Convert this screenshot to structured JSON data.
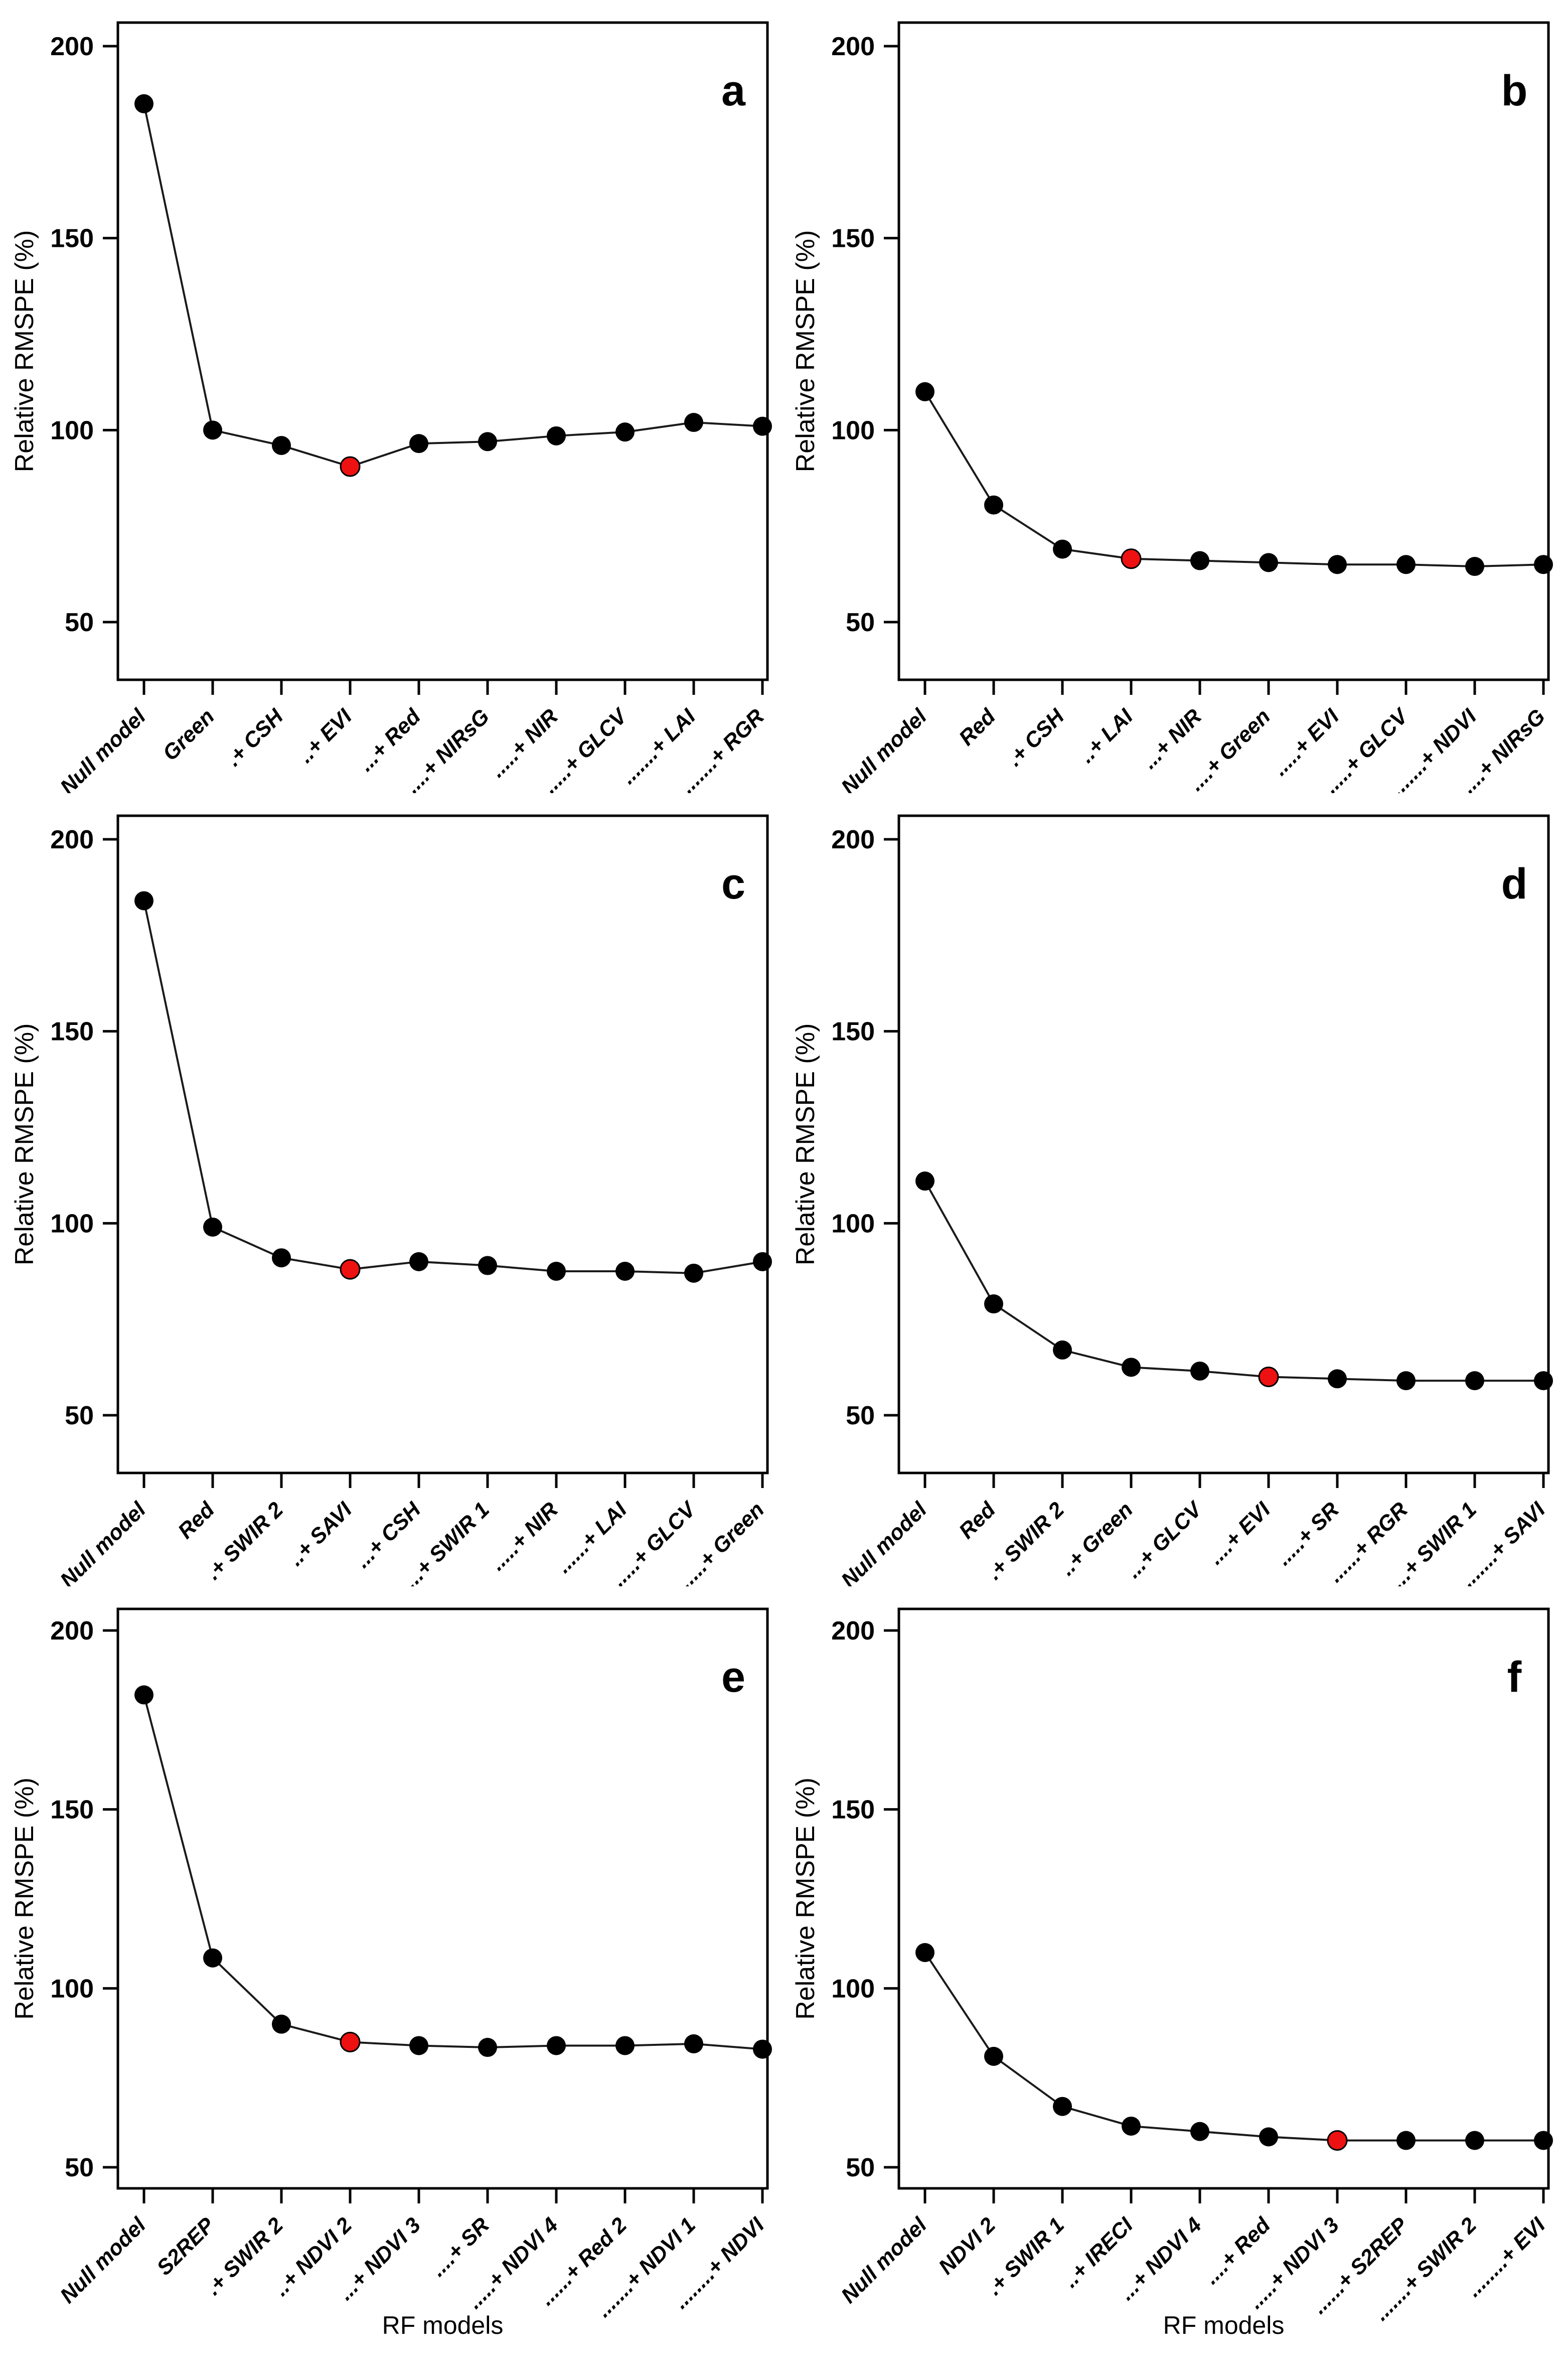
{
  "figure": {
    "ylabel": "Relative RMSPE (%)",
    "xlabel": "RF models",
    "colors": {
      "background": "#ffffff",
      "axis": "#000000",
      "line": "#1a1a1a",
      "point": "#000000",
      "highlight_point": "#ee1111",
      "text": "#000000"
    }
  },
  "chart_data": [
    {
      "type": "line",
      "panel_letter": "a",
      "ylabel": "Relative RMSPE (%)",
      "xlabel": "",
      "yticks": [
        50,
        100,
        150,
        200
      ],
      "ylim": [
        35,
        206
      ],
      "grid": false,
      "categories": [
        "Null model",
        "Green",
        ".+ CSH",
        "..+ EVI",
        "...+ Red",
        "....+ NIRsG",
        ".....+ NIR",
        "......+ GLCV",
        ".......+ LAI",
        "........+ RGR"
      ],
      "values": [
        185,
        100,
        96,
        90.5,
        96.5,
        97,
        98.5,
        99.5,
        102,
        101
      ],
      "highlight_index": 3
    },
    {
      "type": "line",
      "panel_letter": "b",
      "ylabel": "Relative RMSPE (%)",
      "xlabel": "",
      "yticks": [
        50,
        100,
        150,
        200
      ],
      "ylim": [
        35,
        206
      ],
      "grid": false,
      "categories": [
        "Null model",
        "Red",
        ".+ CSH",
        "..+ LAI",
        "...+ NIR",
        "....+ Green",
        ".....+ EVI",
        "......+ GLCV",
        ".......+ NDVI",
        "........+ NIRsG"
      ],
      "values": [
        110,
        80.5,
        69,
        66.5,
        66,
        65.5,
        65,
        65,
        64.5,
        65
      ],
      "highlight_index": 3
    },
    {
      "type": "line",
      "panel_letter": "c",
      "ylabel": "Relative RMSPE (%)",
      "xlabel": "",
      "yticks": [
        50,
        100,
        150,
        200
      ],
      "ylim": [
        35,
        206
      ],
      "grid": false,
      "categories": [
        "Null model",
        "Red",
        ".+ SWIR 2",
        "..+ SAVI",
        "...+ CSH",
        "....+ SWIR 1",
        ".....+ NIR",
        "......+ LAI",
        ".......+ GLCV",
        "........+ Green"
      ],
      "values": [
        184,
        99,
        91,
        88,
        90,
        89,
        87.5,
        87.5,
        87,
        90
      ],
      "highlight_index": 3
    },
    {
      "type": "line",
      "panel_letter": "d",
      "ylabel": "Relative RMSPE (%)",
      "xlabel": "",
      "yticks": [
        50,
        100,
        150,
        200
      ],
      "ylim": [
        35,
        206
      ],
      "grid": false,
      "categories": [
        "Null model",
        "Red",
        ".+ SWIR 2",
        "..+ Green",
        "...+ GLCV",
        "....+ EVI",
        ".....+ SR",
        "......+ RGR",
        ".......+ SWIR 1",
        "........+ SAVI"
      ],
      "values": [
        111,
        79,
        67,
        62.5,
        61.5,
        60,
        59.5,
        59,
        59,
        59
      ],
      "highlight_index": 5
    },
    {
      "type": "line",
      "panel_letter": "e",
      "ylabel": "Relative RMSPE (%)",
      "xlabel": "RF models",
      "yticks": [
        50,
        100,
        150,
        200
      ],
      "ylim": [
        35,
        206
      ],
      "grid": false,
      "categories": [
        "Null model",
        "S2REP",
        ".+ SWIR 2",
        "..+ NDVI 2",
        "...+ NDVI 3",
        "....+ SR",
        ".....+ NDVI 4",
        "......+ Red 2",
        ".......+ NDVI 1",
        "........+ NDVI"
      ],
      "values": [
        182,
        108.5,
        90,
        85,
        84,
        83.5,
        84,
        84,
        84.5,
        83
      ],
      "highlight_index": 3
    },
    {
      "type": "line",
      "panel_letter": "f",
      "ylabel": "Relative RMSPE (%)",
      "xlabel": "RF models",
      "yticks": [
        50,
        100,
        150,
        200
      ],
      "ylim": [
        35,
        206
      ],
      "grid": false,
      "categories": [
        "Null model",
        "NDVI 2",
        ".+ SWIR 1",
        "..+ IRECI",
        "...+ NDVI 4",
        "....+ Red",
        ".....+ NDVI 3",
        "......+ S2REP",
        ".......+ SWIR 2",
        "........+ EVI"
      ],
      "values": [
        110,
        81,
        67,
        61.5,
        60,
        58.5,
        57.5,
        57.5,
        57.5,
        57.5
      ],
      "highlight_index": 6
    }
  ]
}
